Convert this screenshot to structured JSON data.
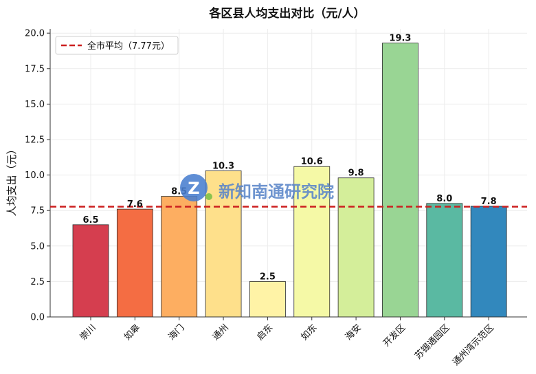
{
  "chart_data": {
    "type": "bar",
    "title": "各区县人均支出对比（元/人）",
    "xlabel": "",
    "ylabel": "人均支出（元）",
    "categories": [
      "崇川",
      "如皋",
      "海门",
      "通州",
      "启东",
      "如东",
      "海安",
      "开发区",
      "苏锡通园区",
      "通州湾示范区"
    ],
    "values": [
      6.5,
      7.6,
      8.5,
      10.3,
      2.5,
      10.6,
      9.8,
      19.3,
      8.0,
      7.8
    ],
    "data_labels": [
      "6.5",
      "7.6",
      "8.5",
      "10.3",
      "2.5",
      "10.6",
      "9.8",
      "19.3",
      "8.0",
      "7.8"
    ],
    "bar_colors": [
      "#d53e4f",
      "#f46d43",
      "#fdae61",
      "#fee08b",
      "#fff3a6",
      "#f5f9a6",
      "#d4ee9a",
      "#99d594",
      "#5ab9a2",
      "#3288bd"
    ],
    "ylim": [
      0,
      20.3
    ],
    "yticks": [
      0.0,
      2.5,
      5.0,
      7.5,
      10.0,
      12.5,
      15.0,
      17.5,
      20.0
    ],
    "ytick_labels": [
      "0.0",
      "2.5",
      "5.0",
      "7.5",
      "10.0",
      "12.5",
      "15.0",
      "17.5",
      "20.0"
    ],
    "reference_line": {
      "value": 7.77,
      "label": "全市平均（7.77元）",
      "color": "#cc1f1f",
      "style": "dashed"
    },
    "grid": true,
    "legend_position": "top-left",
    "watermark_text": "新知南通研究院"
  }
}
